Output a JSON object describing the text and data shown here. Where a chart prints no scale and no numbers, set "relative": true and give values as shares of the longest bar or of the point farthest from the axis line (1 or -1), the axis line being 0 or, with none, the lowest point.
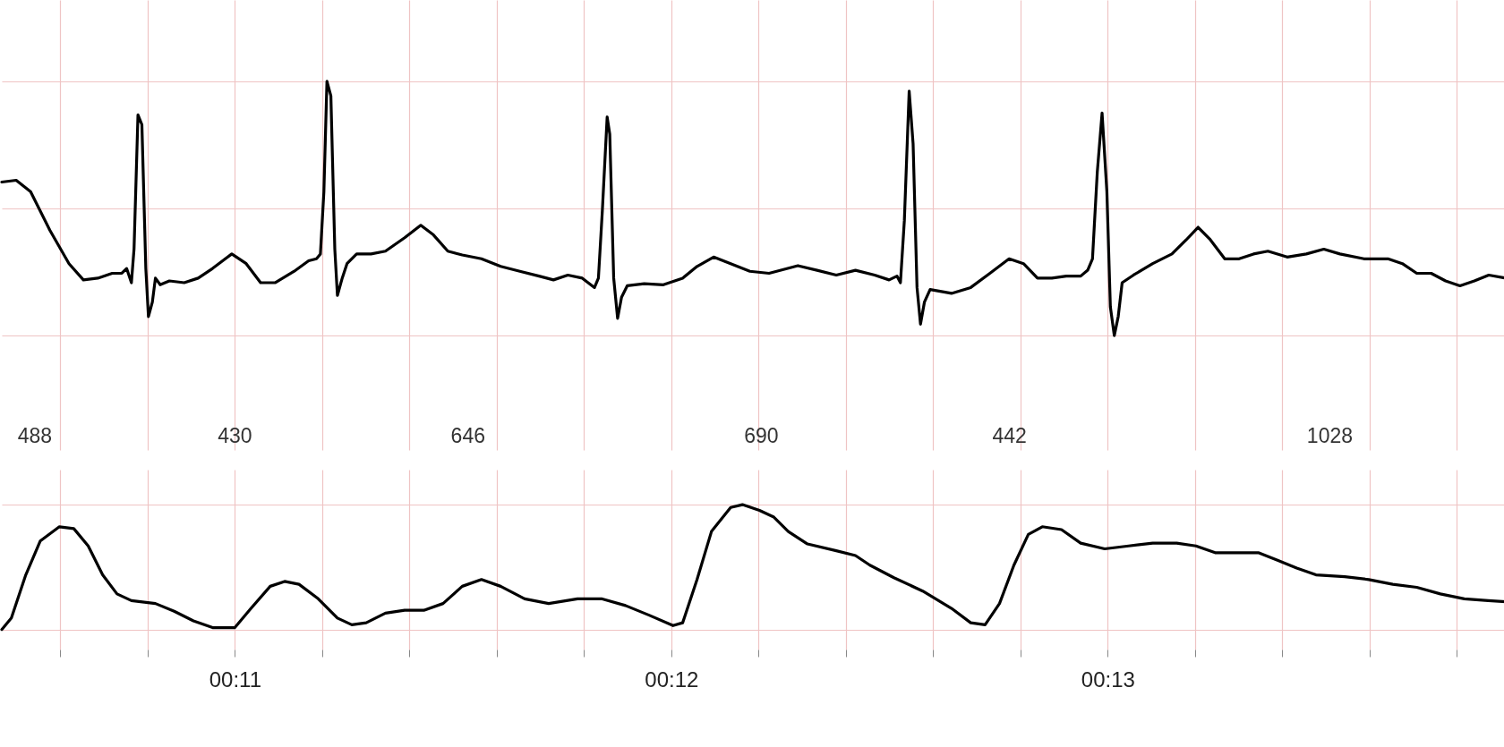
{
  "chart_data": [
    {
      "type": "line",
      "relative": true,
      "color": "#000000",
      "grid": true,
      "tick_labels": false,
      "xlim": [
        10.466,
        13.912
      ],
      "xticks": [
        {
          "value": 10.6,
          "label": null
        },
        {
          "value": 10.8,
          "label": null
        },
        {
          "value": 11,
          "label": null
        },
        {
          "value": 11.2,
          "label": null
        },
        {
          "value": 11.4,
          "label": null
        },
        {
          "value": 11.6,
          "label": null
        },
        {
          "value": 11.8,
          "label": null
        },
        {
          "value": 12,
          "label": null
        },
        {
          "value": 12.2,
          "label": null
        },
        {
          "value": 12.4,
          "label": null
        },
        {
          "value": 12.6,
          "label": null
        },
        {
          "value": 12.8,
          "label": null
        },
        {
          "value": 13,
          "label": null
        },
        {
          "value": 13.2,
          "label": null
        },
        {
          "value": 13.4,
          "label": null
        },
        {
          "value": 13.6,
          "label": null
        },
        {
          "value": 13.8,
          "label": null
        }
      ],
      "x": [
        10.466,
        10.499,
        10.532,
        10.576,
        10.62,
        10.653,
        10.686,
        10.719,
        10.741,
        10.752,
        10.763,
        10.769,
        10.778,
        10.787,
        10.796,
        10.802,
        10.811,
        10.818,
        10.829,
        10.85,
        10.884,
        10.916,
        10.949,
        10.993,
        11.026,
        11.059,
        11.092,
        11.136,
        11.169,
        11.187,
        11.196,
        11.204,
        11.211,
        11.22,
        11.229,
        11.235,
        11.246,
        11.257,
        11.279,
        11.312,
        11.345,
        11.389,
        11.426,
        11.455,
        11.488,
        11.521,
        11.565,
        11.609,
        11.653,
        11.697,
        11.73,
        11.763,
        11.796,
        11.824,
        11.833,
        11.842,
        11.853,
        11.859,
        11.868,
        11.877,
        11.886,
        11.899,
        11.938,
        11.982,
        12.026,
        12.059,
        12.097,
        12.136,
        12.18,
        12.224,
        12.29,
        12.334,
        12.378,
        12.422,
        12.466,
        12.499,
        12.517,
        12.525,
        12.534,
        12.545,
        12.554,
        12.563,
        12.571,
        12.58,
        12.593,
        12.642,
        12.686,
        12.73,
        12.774,
        12.807,
        12.839,
        12.872,
        12.905,
        12.938,
        12.954,
        12.965,
        12.976,
        12.987,
        12.998,
        13.006,
        13.015,
        13.024,
        13.033,
        13.059,
        13.103,
        13.147,
        13.18,
        13.207,
        13.235,
        13.268,
        13.301,
        13.334,
        13.367,
        13.411,
        13.455,
        13.495,
        13.532,
        13.587,
        13.642,
        13.675,
        13.708,
        13.741,
        13.774,
        13.807,
        13.84,
        13.873,
        13.912
      ],
      "values": [
        0.604,
        0.611,
        0.566,
        0.415,
        0.283,
        0.219,
        0.226,
        0.245,
        0.245,
        0.264,
        0.208,
        0.34,
        0.868,
        0.83,
        0.264,
        0.075,
        0.132,
        0.226,
        0.2,
        0.215,
        0.208,
        0.226,
        0.264,
        0.321,
        0.283,
        0.208,
        0.208,
        0.253,
        0.294,
        0.302,
        0.321,
        0.566,
        1.0,
        0.943,
        0.34,
        0.158,
        0.226,
        0.283,
        0.321,
        0.321,
        0.332,
        0.385,
        0.434,
        0.396,
        0.332,
        0.317,
        0.302,
        0.272,
        0.253,
        0.234,
        0.219,
        0.238,
        0.226,
        0.189,
        0.226,
        0.491,
        0.86,
        0.792,
        0.226,
        0.068,
        0.151,
        0.196,
        0.204,
        0.2,
        0.226,
        0.272,
        0.309,
        0.283,
        0.253,
        0.245,
        0.275,
        0.257,
        0.238,
        0.257,
        0.238,
        0.219,
        0.234,
        0.208,
        0.453,
        0.962,
        0.755,
        0.189,
        0.045,
        0.132,
        0.181,
        0.166,
        0.189,
        0.245,
        0.302,
        0.283,
        0.226,
        0.226,
        0.234,
        0.234,
        0.257,
        0.302,
        0.642,
        0.875,
        0.566,
        0.113,
        0.0,
        0.075,
        0.208,
        0.238,
        0.283,
        0.321,
        0.377,
        0.426,
        0.377,
        0.302,
        0.302,
        0.321,
        0.332,
        0.309,
        0.321,
        0.34,
        0.321,
        0.302,
        0.302,
        0.283,
        0.245,
        0.245,
        0.215,
        0.196,
        0.215,
        0.238,
        0.226
      ],
      "annotations": [
        "488",
        "430",
        "646",
        "690",
        "442",
        "1028"
      ]
    },
    {
      "type": "line",
      "relative": true,
      "color": "#000000",
      "grid": true,
      "tick_labels": "x",
      "xlim": [
        10.466,
        13.912
      ],
      "xticks": [
        {
          "value": 10.6,
          "label": null
        },
        {
          "value": 10.8,
          "label": null
        },
        {
          "value": 11,
          "label": "00:11"
        },
        {
          "value": 11.2,
          "label": null
        },
        {
          "value": 11.4,
          "label": null
        },
        {
          "value": 11.6,
          "label": null
        },
        {
          "value": 11.8,
          "label": null
        },
        {
          "value": 12,
          "label": "00:12"
        },
        {
          "value": 12.2,
          "label": null
        },
        {
          "value": 12.4,
          "label": null
        },
        {
          "value": 12.6,
          "label": null
        },
        {
          "value": 12.8,
          "label": null
        },
        {
          "value": 13,
          "label": "00:13"
        },
        {
          "value": 13.2,
          "label": null
        },
        {
          "value": 13.4,
          "label": null
        },
        {
          "value": 13.6,
          "label": null
        },
        {
          "value": 13.8,
          "label": null
        }
      ],
      "x": [
        10.466,
        10.488,
        10.521,
        10.554,
        10.598,
        10.631,
        10.664,
        10.697,
        10.73,
        10.763,
        10.818,
        10.861,
        10.905,
        10.949,
        11.0,
        11.037,
        11.081,
        11.114,
        11.147,
        11.191,
        11.235,
        11.268,
        11.301,
        11.345,
        11.389,
        11.433,
        11.477,
        11.521,
        11.565,
        11.609,
        11.664,
        11.719,
        11.785,
        11.84,
        11.895,
        11.949,
        12.004,
        12.026,
        12.059,
        12.092,
        12.136,
        12.163,
        12.202,
        12.235,
        12.268,
        12.312,
        12.378,
        12.422,
        12.455,
        12.51,
        12.576,
        12.642,
        12.686,
        12.719,
        12.752,
        12.785,
        12.818,
        12.85,
        12.894,
        12.938,
        12.993,
        13.048,
        13.103,
        13.158,
        13.202,
        13.246,
        13.301,
        13.345,
        13.389,
        13.433,
        13.477,
        13.543,
        13.598,
        13.653,
        13.708,
        13.762,
        13.817,
        13.872,
        13.912
      ],
      "values": [
        0.0,
        0.092,
        0.438,
        0.708,
        0.823,
        0.808,
        0.669,
        0.438,
        0.285,
        0.231,
        0.208,
        0.146,
        0.069,
        0.015,
        0.015,
        0.169,
        0.346,
        0.385,
        0.362,
        0.246,
        0.092,
        0.038,
        0.054,
        0.131,
        0.154,
        0.154,
        0.208,
        0.346,
        0.4,
        0.346,
        0.246,
        0.208,
        0.246,
        0.246,
        0.192,
        0.115,
        0.031,
        0.054,
        0.4,
        0.785,
        0.977,
        1.0,
        0.954,
        0.9,
        0.785,
        0.685,
        0.631,
        0.592,
        0.515,
        0.415,
        0.308,
        0.169,
        0.054,
        0.038,
        0.208,
        0.515,
        0.762,
        0.823,
        0.8,
        0.692,
        0.646,
        0.669,
        0.692,
        0.692,
        0.669,
        0.615,
        0.615,
        0.615,
        0.554,
        0.492,
        0.438,
        0.423,
        0.4,
        0.362,
        0.338,
        0.285,
        0.246,
        0.231,
        0.223
      ]
    }
  ]
}
